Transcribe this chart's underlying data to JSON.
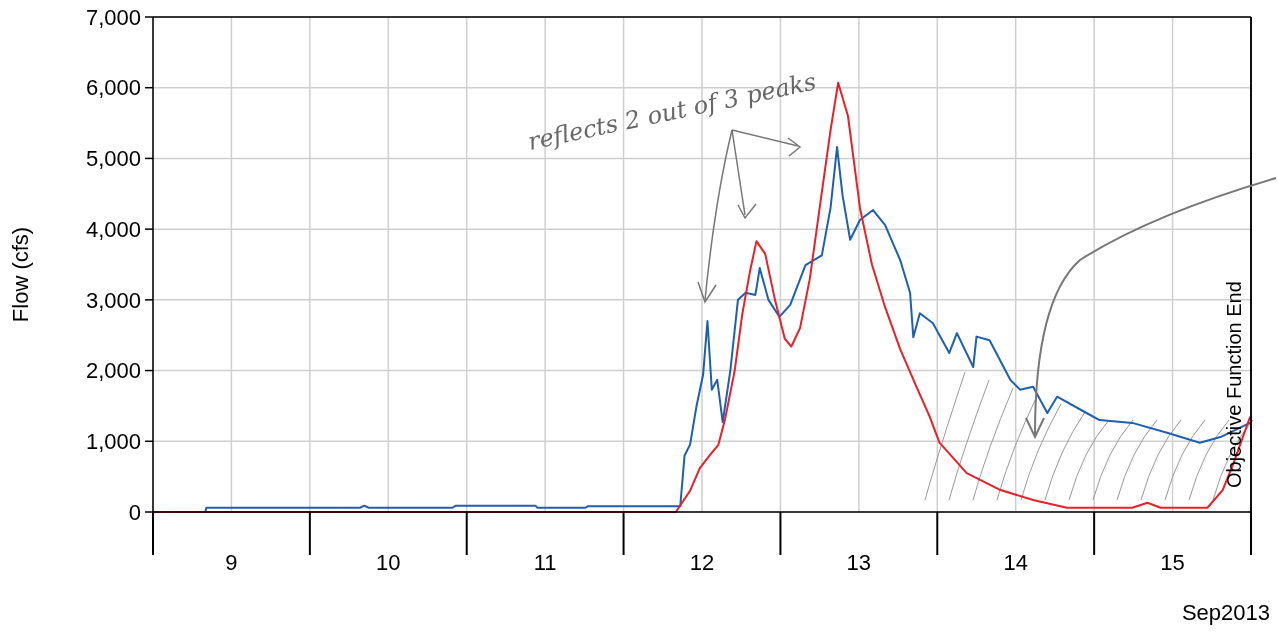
{
  "chart_data": {
    "type": "line",
    "ylabel": "Flow (cfs)",
    "xlabel": "Sep2013",
    "xlim": [
      "2013-09-09T00:00",
      "2013-09-16T00:00"
    ],
    "xticks": [
      {
        "value": "2013-09-09T00:00",
        "label": null
      },
      {
        "value": "2013-09-09T12:00",
        "label": "9"
      },
      {
        "value": "2013-09-10T00:00",
        "label": null
      },
      {
        "value": "2013-09-10T12:00",
        "label": "10"
      },
      {
        "value": "2013-09-11T00:00",
        "label": null
      },
      {
        "value": "2013-09-11T12:00",
        "label": "11"
      },
      {
        "value": "2013-09-12T00:00",
        "label": null
      },
      {
        "value": "2013-09-12T12:00",
        "label": "12"
      },
      {
        "value": "2013-09-13T00:00",
        "label": null
      },
      {
        "value": "2013-09-13T12:00",
        "label": "13"
      },
      {
        "value": "2013-09-14T00:00",
        "label": null
      },
      {
        "value": "2013-09-14T12:00",
        "label": "14"
      },
      {
        "value": "2013-09-15T00:00",
        "label": null
      },
      {
        "value": "2013-09-15T12:00",
        "label": "15"
      },
      {
        "value": "2013-09-16T00:00",
        "label": null
      }
    ],
    "ylim": [
      0,
      7000
    ],
    "yticks": [
      0,
      {
        "value": 1000,
        "label": "1,000"
      },
      {
        "value": 2000,
        "label": "2,000"
      },
      {
        "value": 3000,
        "label": "3,000"
      },
      {
        "value": 4000,
        "label": "4,000"
      },
      {
        "value": 5000,
        "label": "5,000"
      },
      {
        "value": 6000,
        "label": "6,000"
      },
      {
        "value": 7000,
        "label": "7,000"
      }
    ],
    "grid": true,
    "marker": "none",
    "line_style": "solid",
    "ref_lines": [
      {
        "axis": "x",
        "value": "2013-09-16T00:00",
        "label": "Objective Function End",
        "color": "#000000"
      }
    ],
    "annotations": [
      "reflects 2 out of 3 peaks"
    ],
    "series": [
      {
        "color": "#1f5fb0",
        "x": [
          "2013-09-09T00:00",
          "2013-09-09T08:00",
          "2013-09-09T08:10",
          "2013-09-10T07:40",
          "2013-09-10T08:20",
          "2013-09-10T09:00",
          "2013-09-10T21:50",
          "2013-09-10T22:20",
          "2013-09-11T10:30",
          "2013-09-11T10:50",
          "2013-09-11T18:10",
          "2013-09-11T18:30",
          "2013-09-12T08:40",
          "2013-09-12T09:20",
          "2013-09-12T10:10",
          "2013-09-12T11:10",
          "2013-09-12T12:10",
          "2013-09-12T12:50",
          "2013-09-12T13:30",
          "2013-09-12T14:20",
          "2013-09-12T15:10",
          "2013-09-12T16:20",
          "2013-09-12T17:30",
          "2013-09-12T18:40",
          "2013-09-12T20:10",
          "2013-09-12T20:50",
          "2013-09-12T22:10",
          "2013-09-12T23:50",
          "2013-09-13T01:30",
          "2013-09-13T03:50",
          "2013-09-13T06:20",
          "2013-09-13T07:40",
          "2013-09-13T08:40",
          "2013-09-13T09:30",
          "2013-09-13T10:40",
          "2013-09-13T12:10",
          "2013-09-13T14:10",
          "2013-09-13T16:00",
          "2013-09-13T18:20",
          "2013-09-13T19:50",
          "2013-09-13T20:20",
          "2013-09-13T21:20",
          "2013-09-13T23:20",
          "2013-09-14T01:50",
          "2013-09-14T03:00",
          "2013-09-14T05:30",
          "2013-09-14T06:00",
          "2013-09-14T08:00",
          "2013-09-14T11:10",
          "2013-09-14T12:40",
          "2013-09-14T14:40",
          "2013-09-14T16:50",
          "2013-09-14T18:20",
          "2013-09-14T22:50",
          "2013-09-15T00:50",
          "2013-09-15T05:50",
          "2013-09-15T11:10",
          "2013-09-15T16:10",
          "2013-09-15T19:20",
          "2013-09-15T23:50"
        ],
        "values": [
          0,
          0,
          60,
          60,
          90,
          60,
          60,
          90,
          90,
          60,
          60,
          80,
          80,
          800,
          950,
          1500,
          1940,
          2700,
          1730,
          1870,
          1270,
          2000,
          3000,
          3100,
          3070,
          3450,
          3000,
          2760,
          2930,
          3490,
          3630,
          4300,
          5160,
          4480,
          3850,
          4130,
          4270,
          4060,
          3560,
          3100,
          2470,
          2810,
          2670,
          2250,
          2530,
          2050,
          2480,
          2430,
          1870,
          1730,
          1770,
          1400,
          1630,
          1400,
          1300,
          1260,
          1120,
          980,
          1060,
          1260
        ]
      },
      {
        "color": "#e8202a",
        "x": [
          "2013-09-09T00:00",
          "2013-09-12T08:00",
          "2013-09-12T10:10",
          "2013-09-12T11:40",
          "2013-09-12T13:10",
          "2013-09-12T14:30",
          "2013-09-12T15:30",
          "2013-09-12T17:00",
          "2013-09-12T18:10",
          "2013-09-12T19:20",
          "2013-09-12T20:20",
          "2013-09-12T21:40",
          "2013-09-12T23:10",
          "2013-09-13T00:40",
          "2013-09-13T01:40",
          "2013-09-13T03:00",
          "2013-09-13T04:30",
          "2013-09-13T06:00",
          "2013-09-13T07:40",
          "2013-09-13T08:50",
          "2013-09-13T10:20",
          "2013-09-13T12:10",
          "2013-09-13T14:00",
          "2013-09-13T16:00",
          "2013-09-13T18:20",
          "2013-09-13T20:40",
          "2013-09-13T22:50",
          "2013-09-14T00:20",
          "2013-09-14T04:30",
          "2013-09-14T09:40",
          "2013-09-14T14:40",
          "2013-09-14T19:50",
          "2013-09-15T05:50",
          "2013-09-15T08:10",
          "2013-09-15T10:10",
          "2013-09-15T17:20",
          "2013-09-15T19:40",
          "2013-09-15T21:20",
          "2013-09-15T23:50"
        ],
        "values": [
          0,
          0,
          300,
          620,
          800,
          950,
          1300,
          2000,
          2800,
          3400,
          3830,
          3650,
          3000,
          2450,
          2340,
          2600,
          3300,
          4300,
          5400,
          6070,
          5600,
          4300,
          3500,
          2900,
          2300,
          1800,
          1350,
          980,
          550,
          310,
          170,
          60,
          60,
          130,
          60,
          60,
          310,
          690,
          1340
        ]
      }
    ]
  }
}
